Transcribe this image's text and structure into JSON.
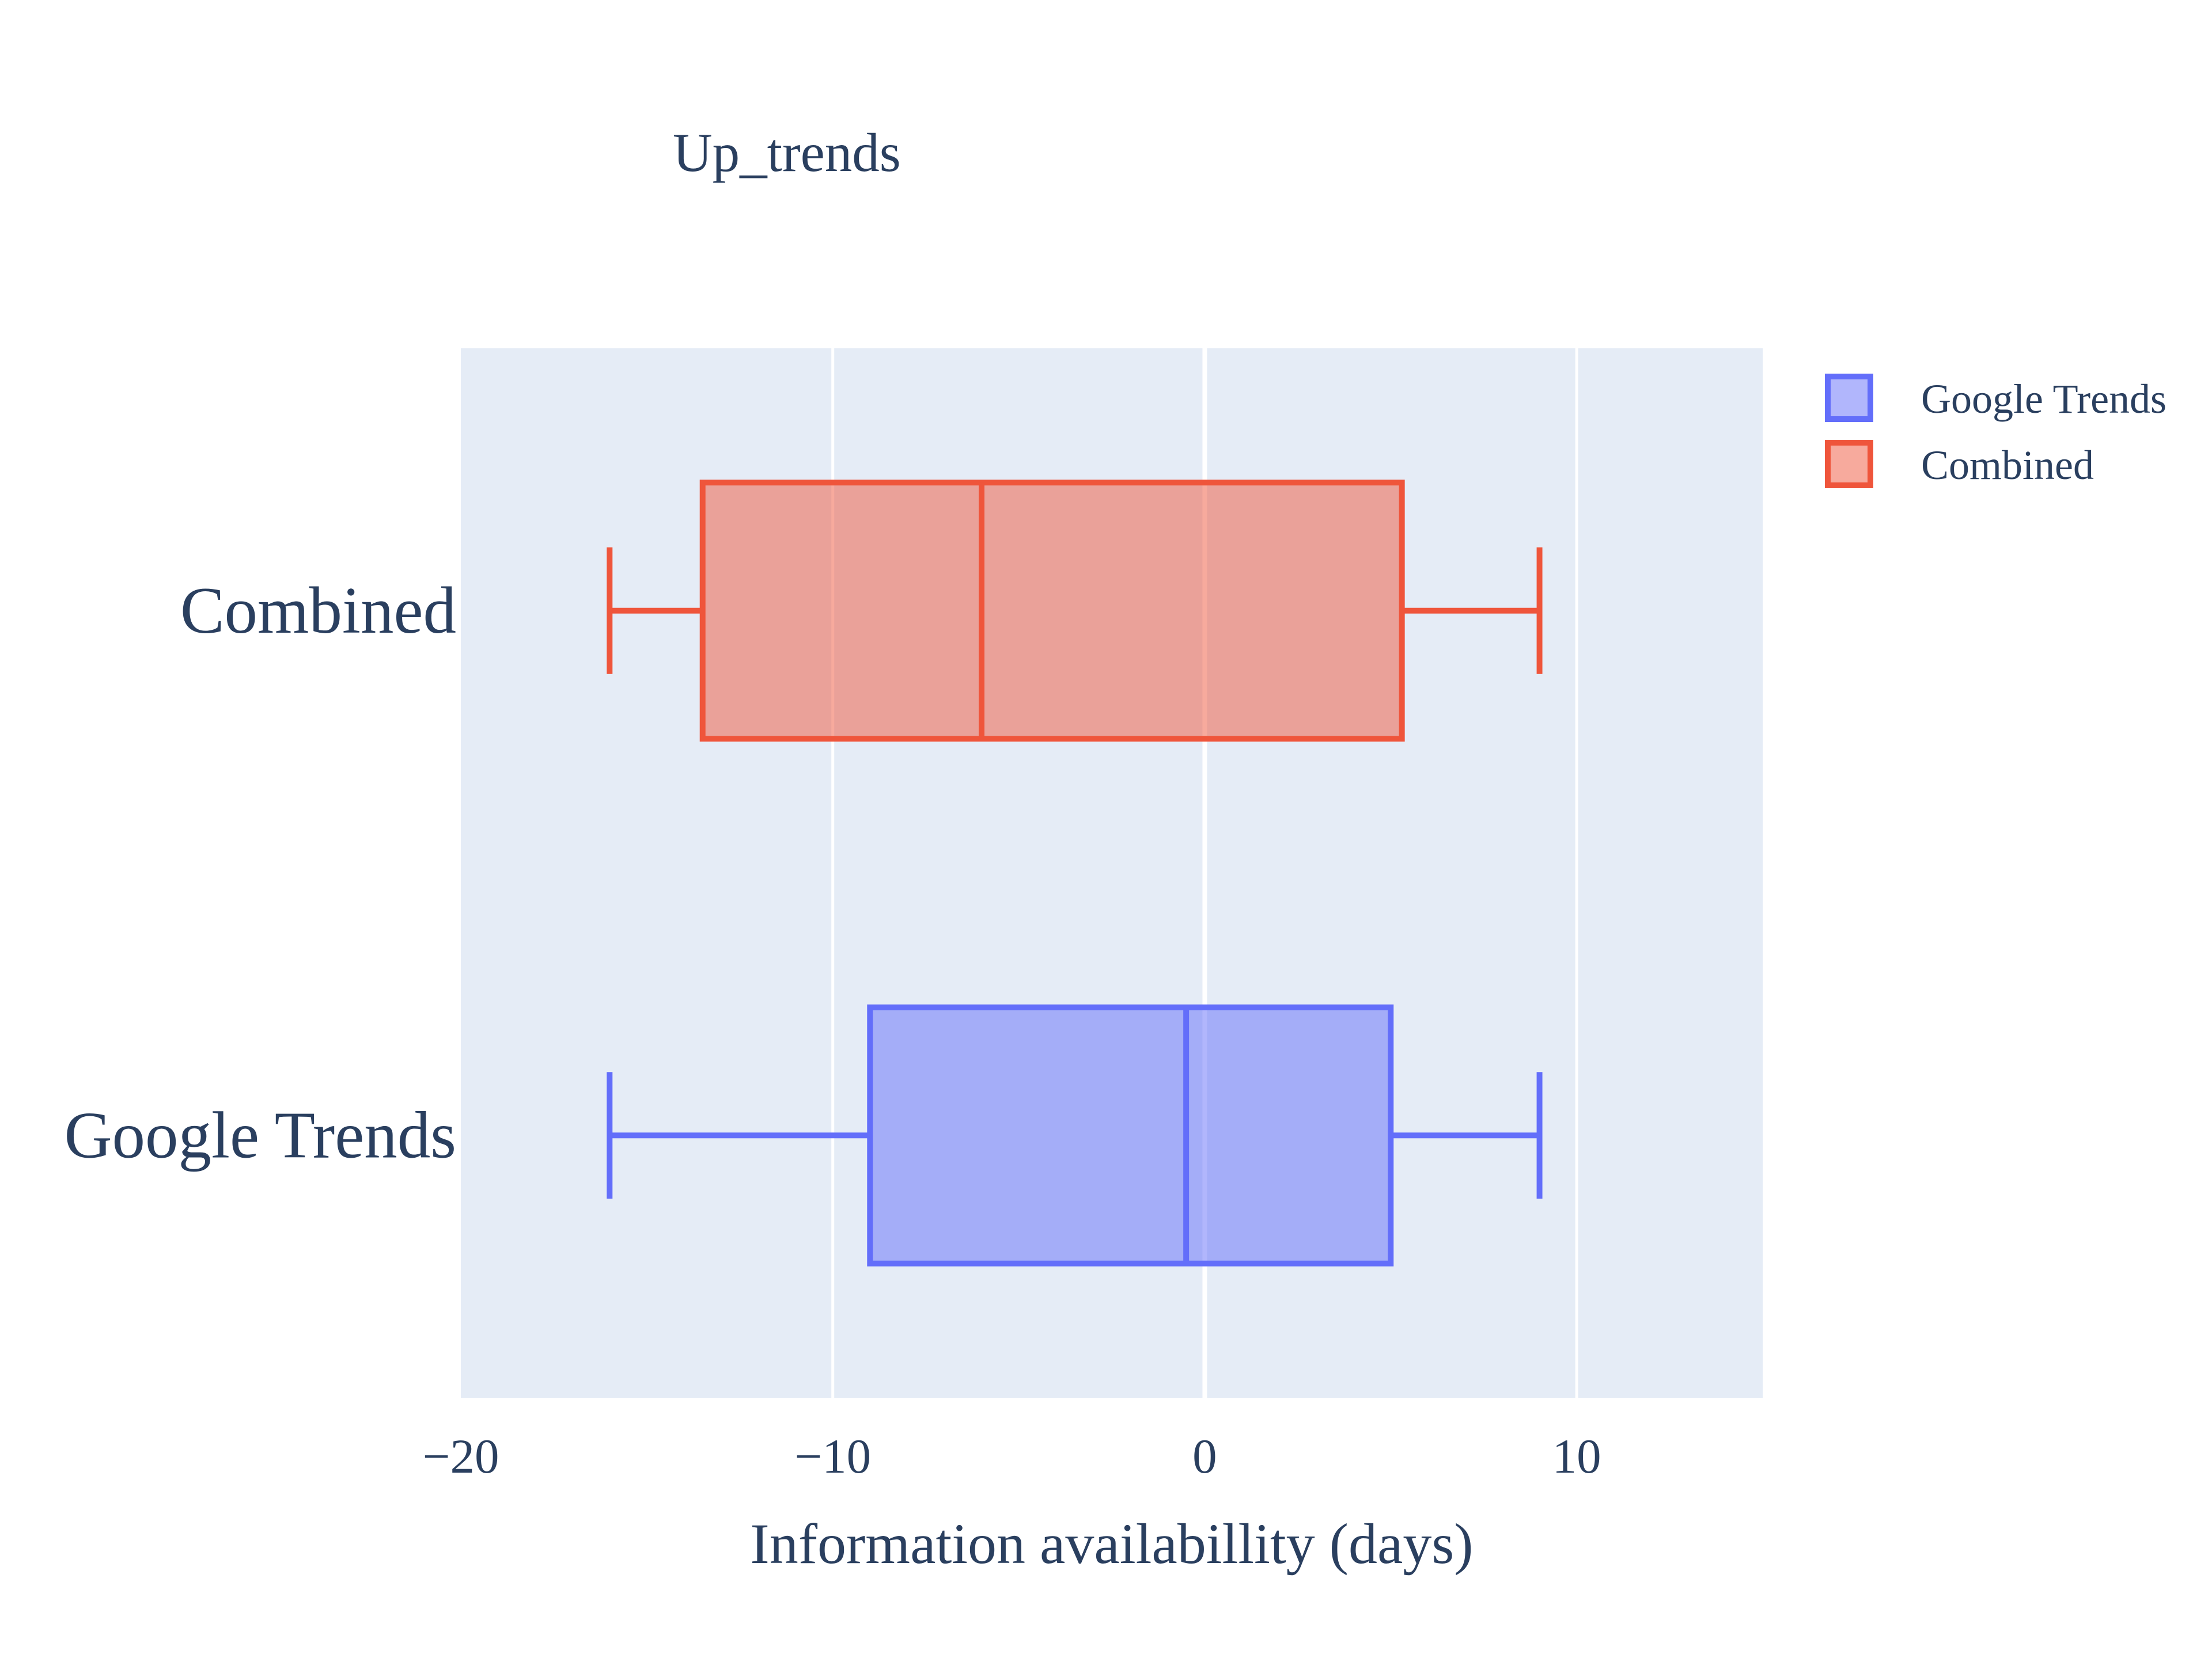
{
  "chart_data": {
    "type": "box",
    "orientation": "horizontal",
    "title": "Up_trends",
    "xlabel": "Information availabillity (days)",
    "ylabel": "",
    "xlim": [
      -20,
      15
    ],
    "xticks": [
      {
        "value": -20,
        "label": "−20"
      },
      {
        "value": -10,
        "label": "−10"
      },
      {
        "value": 0,
        "label": "0"
      },
      {
        "value": 10,
        "label": "10"
      }
    ],
    "grid": true,
    "legend_position": "top-right",
    "series": [
      {
        "name": "Google Trends",
        "category": "Google Trends",
        "min": -16,
        "q1": -9,
        "median": -0.5,
        "q3": 5,
        "max": 9,
        "color": "#636efa",
        "fill": "#a3acf5"
      },
      {
        "name": "Combined",
        "category": "Combined",
        "min": -16,
        "q1": -13.5,
        "median": -6,
        "q3": 5.3,
        "max": 9,
        "color": "#ef553b",
        "fill": "#eaa095"
      }
    ]
  }
}
